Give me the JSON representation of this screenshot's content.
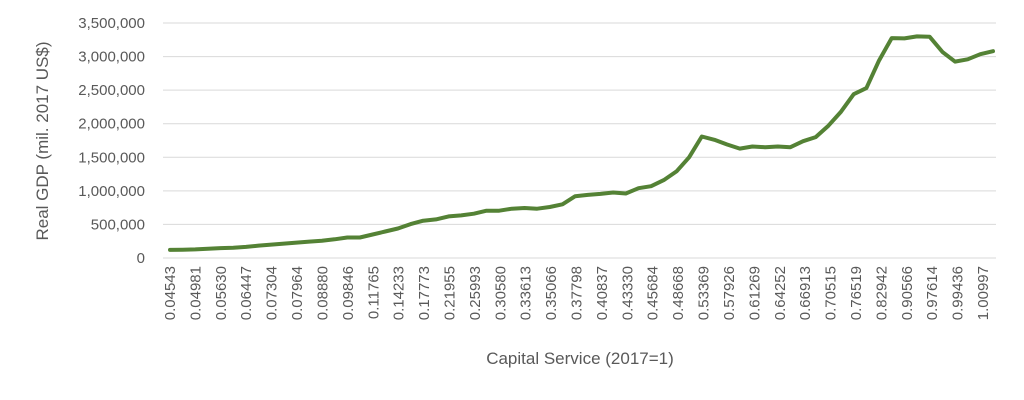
{
  "chart_data": {
    "type": "line",
    "title": "",
    "xlabel": "Capital Service (2017=1)",
    "ylabel": "Real GDP (mil. 2017 US$)",
    "ylim": [
      0,
      3500000
    ],
    "y_ticks": [
      "0",
      "500,000",
      "1,000,000",
      "1,500,000",
      "2,000,000",
      "2,500,000",
      "3,000,000",
      "3,500,000"
    ],
    "grid": true,
    "legend": "none",
    "colors": {
      "series": "#548235",
      "grid": "#d9d9d9",
      "text": "#595959"
    },
    "x_tick_labels": [
      "0.04543",
      "0.04981",
      "0.05630",
      "0.06447",
      "0.07304",
      "0.07964",
      "0.08880",
      "0.09846",
      "0.11765",
      "0.14233",
      "0.17773",
      "0.21955",
      "0.25993",
      "0.30580",
      "0.33613",
      "0.35066",
      "0.37798",
      "0.40837",
      "0.43330",
      "0.45684",
      "0.48668",
      "0.53369",
      "0.57926",
      "0.61269",
      "0.64252",
      "0.66913",
      "0.70515",
      "0.76519",
      "0.82942",
      "0.90566",
      "0.97614",
      "0.99436",
      "1.00997"
    ],
    "series": [
      {
        "values": [
          120000,
          124000,
          128000,
          138000,
          147000,
          153000,
          165000,
          185000,
          200000,
          215000,
          230000,
          245000,
          258000,
          278000,
          305000,
          305000,
          350000,
          395000,
          440000,
          505000,
          555000,
          575000,
          620000,
          635000,
          660000,
          705000,
          705000,
          735000,
          745000,
          735000,
          760000,
          800000,
          920000,
          940000,
          955000,
          975000,
          960000,
          1040000,
          1070000,
          1160000,
          1290000,
          1500000,
          1810000,
          1760000,
          1690000,
          1630000,
          1660000,
          1650000,
          1660000,
          1650000,
          1740000,
          1800000,
          1970000,
          2180000,
          2440000,
          2530000,
          2940000,
          3275000,
          3270000,
          3300000,
          3295000,
          3070000,
          2925000,
          2960000,
          3035000,
          3080000
        ]
      }
    ]
  }
}
